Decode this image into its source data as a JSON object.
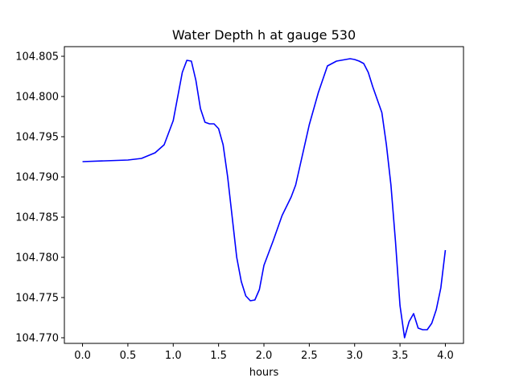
{
  "chart_data": {
    "type": "line",
    "title": "Water Depth h at gauge 530",
    "xlabel": "hours",
    "ylabel": "",
    "xlim": [
      -0.2,
      4.2
    ],
    "ylim": [
      104.7693,
      104.8062
    ],
    "xticks": [
      0.0,
      0.5,
      1.0,
      1.5,
      2.0,
      2.5,
      3.0,
      3.5,
      4.0
    ],
    "xtick_labels": [
      "0.0",
      "0.5",
      "1.0",
      "1.5",
      "2.0",
      "2.5",
      "3.0",
      "3.5",
      "4.0"
    ],
    "yticks": [
      104.77,
      104.775,
      104.78,
      104.785,
      104.79,
      104.795,
      104.8,
      104.805
    ],
    "ytick_labels": [
      "104.770",
      "104.775",
      "104.780",
      "104.785",
      "104.790",
      "104.795",
      "104.800",
      "104.805"
    ],
    "grid": false,
    "series": [
      {
        "color": "#0000ff",
        "x": [
          0.0,
          0.25,
          0.5,
          0.65,
          0.8,
          0.9,
          1.0,
          1.05,
          1.1,
          1.15,
          1.2,
          1.25,
          1.3,
          1.35,
          1.4,
          1.45,
          1.5,
          1.55,
          1.6,
          1.65,
          1.7,
          1.75,
          1.8,
          1.85,
          1.9,
          1.95,
          2.0,
          2.1,
          2.2,
          2.3,
          2.35,
          2.4,
          2.5,
          2.6,
          2.7,
          2.8,
          2.9,
          2.95,
          3.0,
          3.05,
          3.1,
          3.15,
          3.2,
          3.3,
          3.35,
          3.4,
          3.45,
          3.5,
          3.55,
          3.6,
          3.65,
          3.7,
          3.75,
          3.8,
          3.85,
          3.9,
          3.95,
          4.0
        ],
        "y": [
          104.7919,
          104.792,
          104.7921,
          104.7923,
          104.793,
          104.794,
          104.797,
          104.8,
          104.803,
          104.8045,
          104.8044,
          104.802,
          104.7985,
          104.7968,
          104.7966,
          104.7966,
          104.796,
          104.794,
          104.79,
          104.785,
          104.78,
          104.777,
          104.7752,
          104.7746,
          104.7747,
          104.776,
          104.779,
          104.782,
          104.7852,
          104.7875,
          104.789,
          104.7915,
          104.7965,
          104.8005,
          104.8038,
          104.8044,
          104.8046,
          104.8047,
          104.8046,
          104.8044,
          104.8041,
          104.803,
          104.8012,
          104.798,
          104.794,
          104.789,
          104.782,
          104.774,
          104.77,
          104.772,
          104.773,
          104.7712,
          104.771,
          104.771,
          104.7718,
          104.7735,
          104.7762,
          104.7809
        ]
      }
    ]
  }
}
